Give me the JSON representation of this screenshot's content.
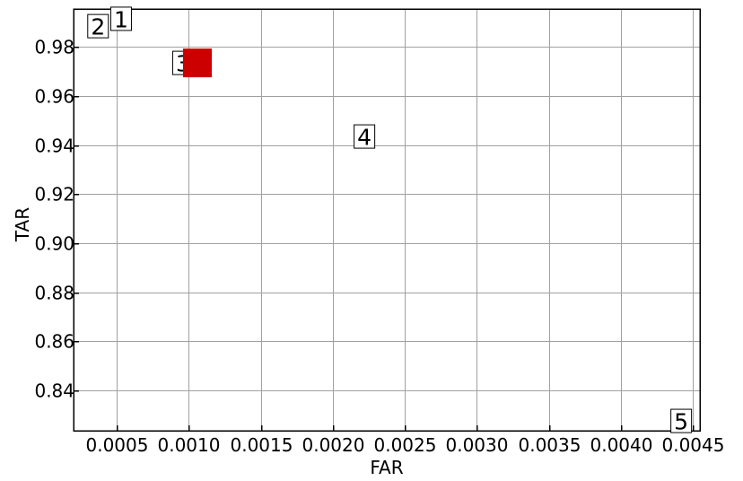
{
  "chart_data": {
    "type": "scatter",
    "title": "",
    "xlabel": "FAR",
    "ylabel": "TAR",
    "xlim": [
      0.0002,
      0.00455
    ],
    "ylim": [
      0.8235,
      0.9955
    ],
    "x_ticks": [
      0.0005,
      0.001,
      0.0015,
      0.002,
      0.0025,
      0.003,
      0.0035,
      0.004,
      0.0045
    ],
    "x_tick_labels": [
      "0.0005",
      "0.0010",
      "0.0015",
      "0.0020",
      "0.0025",
      "0.0030",
      "0.0035",
      "0.0040",
      "0.0045"
    ],
    "y_ticks": [
      0.84,
      0.86,
      0.88,
      0.9,
      0.92,
      0.94,
      0.96,
      0.98
    ],
    "y_tick_labels": [
      "0.84",
      "0.86",
      "0.88",
      "0.90",
      "0.92",
      "0.94",
      "0.96",
      "0.98"
    ],
    "grid": true,
    "points": [
      {
        "label": "1",
        "x": 0.00053,
        "y": 0.9915
      },
      {
        "label": "2",
        "x": 0.00037,
        "y": 0.9885
      },
      {
        "label": "3",
        "x": 0.00096,
        "y": 0.9735
      },
      {
        "label": "4",
        "x": 0.00222,
        "y": 0.9435
      },
      {
        "label": "5",
        "x": 0.00442,
        "y": 0.8275
      }
    ],
    "highlight": {
      "x": 0.00106,
      "y": 0.9735,
      "color": "#cc0000"
    }
  }
}
